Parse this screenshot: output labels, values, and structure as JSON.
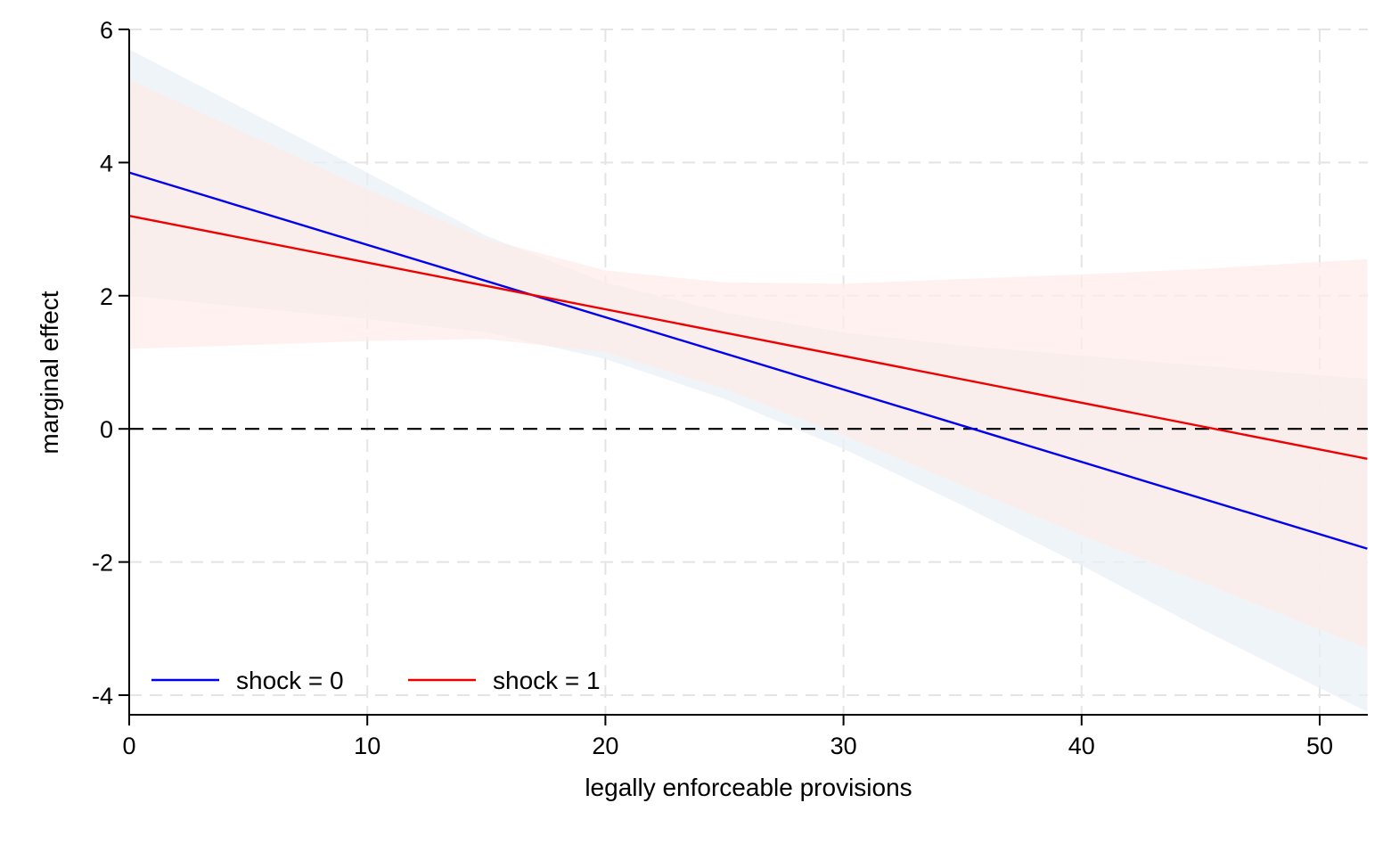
{
  "chart_data": {
    "type": "line",
    "title": "",
    "xlabel": "legally enforceable provisions",
    "ylabel": "marginal effect",
    "xlim": [
      0,
      52
    ],
    "ylim": [
      -4.3,
      6
    ],
    "xticks": [
      0,
      10,
      20,
      30,
      40,
      50
    ],
    "yticks": [
      -4,
      -2,
      0,
      2,
      4,
      6
    ],
    "x_tick_labels": [
      "0",
      "10",
      "20",
      "30",
      "40",
      "50"
    ],
    "y_tick_labels": [
      "-4",
      "-2",
      "0",
      "2",
      "4",
      "6"
    ],
    "grid": true,
    "reference_line": {
      "y": 0,
      "style": "dashed"
    },
    "legend": {
      "position": "bottom-left"
    },
    "series": [
      {
        "name": "shock = 0",
        "color": "#0000ee",
        "band_color": "#eaf0f5",
        "x": [
          0,
          52
        ],
        "y": [
          3.85,
          -1.8
        ],
        "ci_x": [
          0,
          10,
          15,
          20,
          25,
          30,
          35,
          40,
          45,
          52
        ],
        "ci_lower": [
          2.0,
          1.65,
          1.45,
          1.05,
          0.45,
          -0.3,
          -1.15,
          -2.05,
          -3.0,
          -4.25
        ],
        "ci_upper": [
          5.7,
          3.85,
          2.9,
          2.2,
          1.75,
          1.45,
          1.25,
          1.1,
          0.95,
          0.75
        ]
      },
      {
        "name": "shock = 1",
        "color": "#ee0000",
        "band_color": "#fdecea",
        "x": [
          0,
          52
        ],
        "y": [
          3.2,
          -0.45
        ],
        "ci_x": [
          0,
          10,
          15,
          20,
          25,
          30,
          35,
          40,
          45,
          52
        ],
        "ci_lower": [
          1.2,
          1.32,
          1.35,
          1.15,
          0.6,
          -0.1,
          -0.85,
          -1.6,
          -2.3,
          -3.3
        ],
        "ci_upper": [
          5.25,
          3.6,
          2.85,
          2.38,
          2.2,
          2.18,
          2.25,
          2.32,
          2.4,
          2.55
        ]
      }
    ]
  }
}
